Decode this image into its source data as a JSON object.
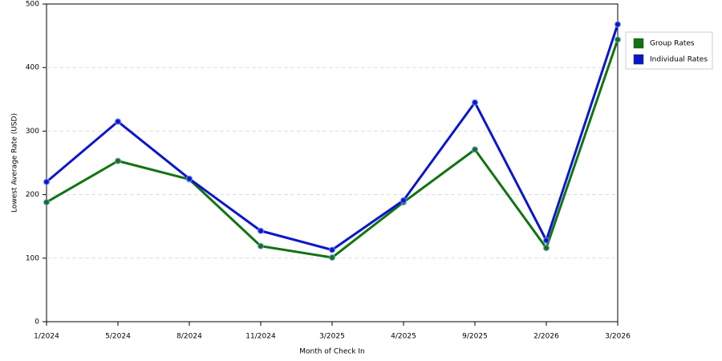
{
  "chart_data": {
    "type": "line",
    "x_label": "Month of Check In",
    "y_label": "Lowest Average Rate (USD)",
    "categories": [
      "1/2024",
      "5/2024",
      "8/2024",
      "11/2024",
      "3/2025",
      "4/2025",
      "9/2025",
      "2/2026",
      "3/2026"
    ],
    "series": [
      {
        "name": "Group Rates",
        "color": "#137313",
        "values": [
          188,
          253,
          224,
          119,
          101,
          188,
          271,
          116,
          444
        ]
      },
      {
        "name": "Individual Rates",
        "color": "#0b16cc",
        "values": [
          220,
          315,
          225,
          143,
          113,
          191,
          345,
          128,
          468
        ]
      }
    ],
    "ylim": [
      0,
      500
    ],
    "yticks": [
      0,
      100,
      200,
      300,
      400,
      500
    ],
    "grid": true,
    "legend": "right"
  }
}
